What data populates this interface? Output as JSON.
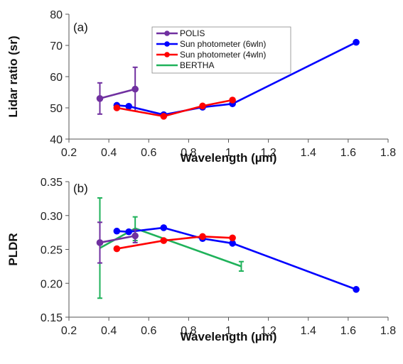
{
  "chart_data": [
    {
      "panel_label": "(a)",
      "type": "line",
      "xlabel": "Wavelength (µm)",
      "ylabel": "Lidar ratio (sr)",
      "xlim": [
        0.2,
        1.8
      ],
      "ylim": [
        40,
        80
      ],
      "xticks": [
        0.2,
        0.4,
        0.6,
        0.8,
        1.0,
        1.2,
        1.4,
        1.6,
        1.8
      ],
      "xtick_labels": [
        "0.2",
        "0.4",
        "0.6",
        "0.8",
        "1",
        "1.2",
        "1.4",
        "1.6",
        "1.8"
      ],
      "yticks": [
        40,
        50,
        60,
        70,
        80
      ],
      "ytick_labels": [
        "40",
        "50",
        "60",
        "70",
        "80"
      ],
      "grid": false,
      "legend_position": "top-center",
      "series": [
        {
          "name": "POLIS",
          "color": "#7030a0",
          "marker": true,
          "x": [
            0.355,
            0.532
          ],
          "y": [
            53,
            56
          ],
          "errors": [
            {
              "x": 0.355,
              "low": 48,
              "high": 58
            },
            {
              "x": 0.532,
              "low": 49,
              "high": 63
            }
          ]
        },
        {
          "name": "Sun photometer (6wln)",
          "color": "#0000ff",
          "marker": true,
          "x": [
            0.44,
            0.5,
            0.675,
            0.87,
            1.02,
            1.64
          ],
          "y": [
            50.8,
            50.5,
            47.8,
            50.2,
            51.3,
            71
          ]
        },
        {
          "name": "Sun photometer (4wln)",
          "color": "#ff0000",
          "marker": true,
          "x": [
            0.44,
            0.675,
            0.87,
            1.02
          ],
          "y": [
            50,
            47.3,
            50.6,
            52.5
          ]
        },
        {
          "name": "BERTHA",
          "color": "#1fb25a",
          "marker": false,
          "x": [],
          "y": []
        }
      ]
    },
    {
      "panel_label": "(b)",
      "type": "line",
      "xlabel": "Wavelength (µm)",
      "ylabel": "PLDR",
      "xlim": [
        0.2,
        1.8
      ],
      "ylim": [
        0.15,
        0.35
      ],
      "xticks": [
        0.2,
        0.4,
        0.6,
        0.8,
        1.0,
        1.2,
        1.4,
        1.6,
        1.8
      ],
      "xtick_labels": [
        "0.2",
        "0.4",
        "0.6",
        "0.8",
        "1",
        "1.2",
        "1.4",
        "1.6",
        "1.8"
      ],
      "yticks": [
        0.15,
        0.2,
        0.25,
        0.3,
        0.35
      ],
      "ytick_labels": [
        "0.15",
        "0.20",
        "0.25",
        "0.30",
        "0.35"
      ],
      "grid": false,
      "series": [
        {
          "name": "BERTHA",
          "color": "#1fb25a",
          "marker": false,
          "x": [
            0.355,
            0.532,
            1.064
          ],
          "y": [
            0.252,
            0.281,
            0.225
          ],
          "errors": [
            {
              "x": 0.355,
              "low": 0.178,
              "high": 0.326
            },
            {
              "x": 0.532,
              "low": 0.263,
              "high": 0.298
            },
            {
              "x": 1.064,
              "low": 0.218,
              "high": 0.232
            }
          ]
        },
        {
          "name": "Sun photometer (6wln)",
          "color": "#0000ff",
          "marker": true,
          "x": [
            0.44,
            0.5,
            0.675,
            0.87,
            1.02,
            1.64
          ],
          "y": [
            0.277,
            0.276,
            0.282,
            0.266,
            0.259,
            0.191
          ]
        },
        {
          "name": "Sun photometer (4wln)",
          "color": "#ff0000",
          "marker": true,
          "x": [
            0.44,
            0.675,
            0.87,
            1.02
          ],
          "y": [
            0.251,
            0.263,
            0.269,
            0.267
          ]
        },
        {
          "name": "POLIS",
          "color": "#7030a0",
          "marker": true,
          "x": [
            0.355,
            0.532
          ],
          "y": [
            0.26,
            0.27
          ],
          "errors": [
            {
              "x": 0.355,
              "low": 0.23,
              "high": 0.29
            },
            {
              "x": 0.532,
              "low": 0.26,
              "high": 0.279
            }
          ]
        }
      ]
    }
  ]
}
